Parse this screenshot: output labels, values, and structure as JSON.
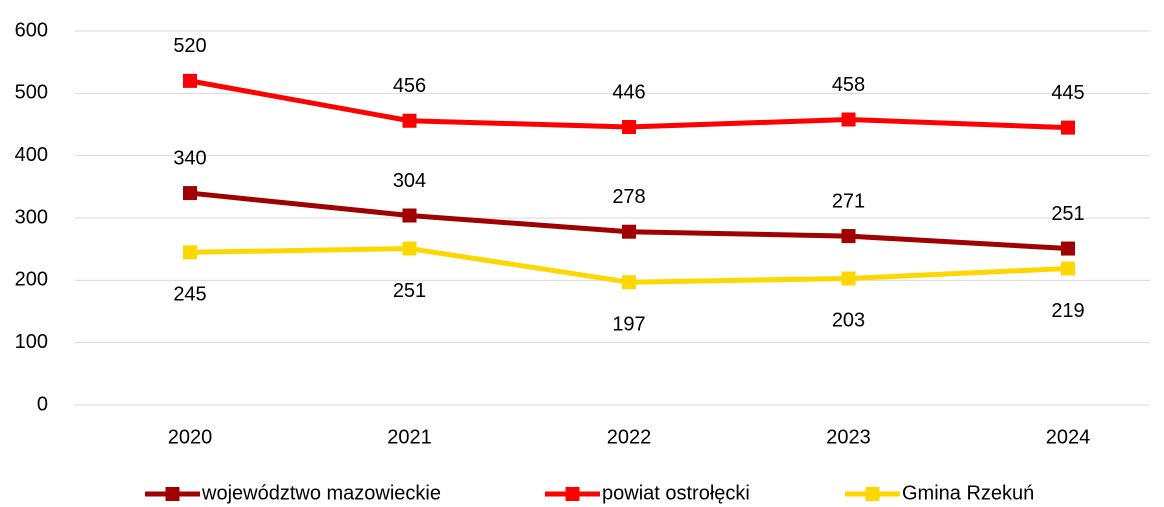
{
  "chart_data": {
    "type": "line",
    "categories": [
      "2020",
      "2021",
      "2022",
      "2023",
      "2024"
    ],
    "series": [
      {
        "name": "województwo mazowieckie",
        "color": "#a00000",
        "values": [
          340,
          304,
          278,
          271,
          251
        ]
      },
      {
        "name": "powiat ostrołęcki",
        "color": "#ff0000",
        "values": [
          520,
          456,
          446,
          458,
          445
        ]
      },
      {
        "name": "Gmina Rzekuń",
        "color": "#ffd700",
        "values": [
          245,
          251,
          197,
          203,
          219
        ]
      }
    ],
    "ylim": [
      0,
      600
    ],
    "yticks": [
      0,
      100,
      200,
      300,
      400,
      500,
      600
    ],
    "grid": true,
    "legend": "bottom"
  }
}
